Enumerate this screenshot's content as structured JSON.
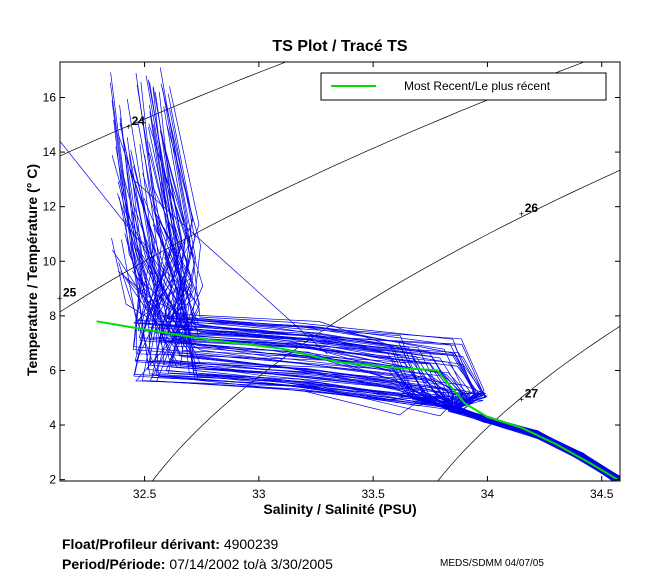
{
  "chart_data": {
    "type": "line",
    "title": "TS Plot / Tracé TS",
    "xlabel": "Salinity / Salinité (PSU)",
    "ylabel": "Temperature / Température (° C)",
    "xlim": [
      32.13,
      34.58
    ],
    "ylim": [
      1.95,
      17.3
    ],
    "xticks": [
      32.5,
      33,
      33.5,
      34,
      34.5
    ],
    "xtick_labels": [
      "32.5",
      "33",
      "33.5",
      "34",
      "34.5"
    ],
    "yticks": [
      2,
      4,
      6,
      8,
      10,
      12,
      14,
      16
    ],
    "ytick_labels": [
      "2",
      "4",
      "6",
      "8",
      "10",
      "12",
      "14",
      "16"
    ],
    "grid": false,
    "legend_position": "top-right",
    "series": [
      {
        "name": "Most Recent/Le plus récent",
        "color": "#00dd00",
        "x": [
          32.29,
          32.5,
          32.8,
          33.1,
          33.35,
          33.6,
          33.78,
          33.83,
          33.9,
          34.0,
          34.15,
          34.3,
          34.45,
          34.58
        ],
        "y": [
          7.8,
          7.5,
          7.1,
          6.8,
          6.3,
          6.1,
          6.0,
          5.5,
          4.8,
          4.3,
          3.9,
          3.3,
          2.6,
          1.95
        ]
      }
    ],
    "profiles": {
      "color": "#0000ee",
      "count": 90,
      "envelope_note": "blue historical profiles (not labeled in legend)",
      "shallow_salinity_range": [
        32.35,
        32.62
      ],
      "shallow_temperature_range": [
        8.0,
        17.2
      ],
      "mixed_layer_temperature_range": [
        5.3,
        7.8
      ],
      "deep_tail": {
        "x": [
          33.85,
          34.0,
          34.2,
          34.4,
          34.58
        ],
        "y": [
          4.6,
          4.2,
          3.7,
          2.9,
          1.95
        ]
      }
    },
    "density_contours": [
      {
        "label": "24",
        "label_at": [
          32.43,
          15.0
        ]
      },
      {
        "label": "25",
        "label_at": [
          32.13,
          8.7
        ]
      },
      {
        "label": "26",
        "label_at": [
          34.15,
          11.8
        ]
      },
      {
        "label": "27",
        "label_at": [
          34.15,
          5.0
        ]
      }
    ]
  },
  "footer": {
    "float_label": "Float/Profileur dérivant:",
    "float_id": "4900239",
    "period_label": "Period/Période:",
    "period_start": "07/14/2002",
    "period_sep": "to/à",
    "period_end": "3/30/2005",
    "stamp": "MEDS/SDMM  04/07/05"
  }
}
